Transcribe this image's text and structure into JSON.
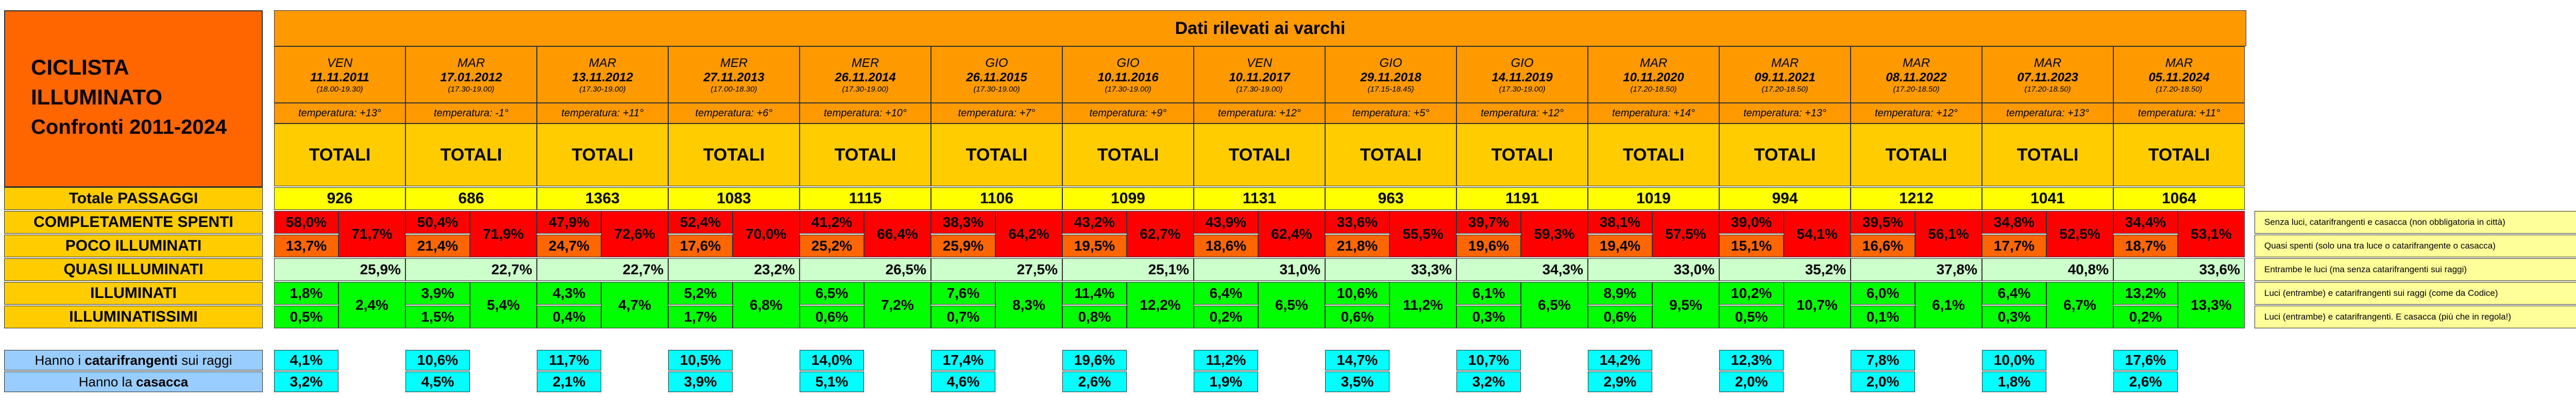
{
  "title": {
    "line1": "CICLISTA",
    "line2": "ILLUMINATO",
    "line3": "Confronti 2011-2024"
  },
  "header": "Dati rilevati ai varchi",
  "columns": [
    {
      "day": "VEN",
      "date": "11.11.2011",
      "hours": "(18.00-19.30)",
      "temp": "temperatura: +13°",
      "total": "TOTALI",
      "passaggi": "926",
      "spenti": "58,0%",
      "poco": "13,7%",
      "sum_sp_poco": "71,7%",
      "quasi": "25,9%",
      "ill": "1,8%",
      "illiss": "0,5%",
      "sum_ill": "2,4%",
      "catarifrangenti": "4,1%",
      "casacca": "3,2%"
    },
    {
      "day": "MAR",
      "date": "17.01.2012",
      "hours": "(17.30-19.00)",
      "temp": "temperatura: -1°",
      "total": "TOTALI",
      "passaggi": "686",
      "spenti": "50,4%",
      "poco": "21,4%",
      "sum_sp_poco": "71,9%",
      "quasi": "22,7%",
      "ill": "3,9%",
      "illiss": "1,5%",
      "sum_ill": "5,4%",
      "catarifrangenti": "10,6%",
      "casacca": "4,5%"
    },
    {
      "day": "MAR",
      "date": "13.11.2012",
      "hours": "(17.30-19.00)",
      "temp": "temperatura: +11°",
      "total": "TOTALI",
      "passaggi": "1363",
      "spenti": "47,9%",
      "poco": "24,7%",
      "sum_sp_poco": "72,6%",
      "quasi": "22,7%",
      "ill": "4,3%",
      "illiss": "0,4%",
      "sum_ill": "4,7%",
      "catarifrangenti": "11,7%",
      "casacca": "2,1%"
    },
    {
      "day": "MER",
      "date": "27.11.2013",
      "hours": "(17.00-18.30)",
      "temp": "temperatura: +6°",
      "total": "TOTALI",
      "passaggi": "1083",
      "spenti": "52,4%",
      "poco": "17,6%",
      "sum_sp_poco": "70,0%",
      "quasi": "23,2%",
      "ill": "5,2%",
      "illiss": "1,7%",
      "sum_ill": "6,8%",
      "catarifrangenti": "10,5%",
      "casacca": "3,9%"
    },
    {
      "day": "MER",
      "date": "26.11.2014",
      "hours": "(17.30-19.00)",
      "temp": "temperatura: +10°",
      "total": "TOTALI",
      "passaggi": "1115",
      "spenti": "41,2%",
      "poco": "25,2%",
      "sum_sp_poco": "66,4%",
      "quasi": "26,5%",
      "ill": "6,5%",
      "illiss": "0,6%",
      "sum_ill": "7,2%",
      "catarifrangenti": "14,0%",
      "casacca": "5,1%"
    },
    {
      "day": "GIO",
      "date": "26.11.2015",
      "hours": "(17.30-19.00)",
      "temp": "temperatura: +7°",
      "total": "TOTALI",
      "passaggi": "1106",
      "spenti": "38,3%",
      "poco": "25,9%",
      "sum_sp_poco": "64,2%",
      "quasi": "27,5%",
      "ill": "7,6%",
      "illiss": "0,7%",
      "sum_ill": "8,3%",
      "catarifrangenti": "17,4%",
      "casacca": "4,6%"
    },
    {
      "day": "GIO",
      "date": "10.11.2016",
      "hours": "(17.30-19.00)",
      "temp": "temperatura: +9°",
      "total": "TOTALI",
      "passaggi": "1099",
      "spenti": "43,2%",
      "poco": "19,5%",
      "sum_sp_poco": "62,7%",
      "quasi": "25,1%",
      "ill": "11,4%",
      "illiss": "0,8%",
      "sum_ill": "12,2%",
      "catarifrangenti": "19,6%",
      "casacca": "2,6%"
    },
    {
      "day": "VEN",
      "date": "10.11.2017",
      "hours": "(17.30-19.00)",
      "temp": "temperatura: +12°",
      "total": "TOTALI",
      "passaggi": "1131",
      "spenti": "43,9%",
      "poco": "18,6%",
      "sum_sp_poco": "62,4%",
      "quasi": "31,0%",
      "ill": "6,4%",
      "illiss": "0,2%",
      "sum_ill": "6,5%",
      "catarifrangenti": "11,2%",
      "casacca": "1,9%"
    },
    {
      "day": "GIO",
      "date": "29.11.2018",
      "hours": "(17.15-18.45)",
      "temp": "temperatura: +5°",
      "total": "TOTALI",
      "passaggi": "963",
      "spenti": "33,6%",
      "poco": "21,8%",
      "sum_sp_poco": "55,5%",
      "quasi": "33,3%",
      "ill": "10,6%",
      "illiss": "0,6%",
      "sum_ill": "11,2%",
      "catarifrangenti": "14,7%",
      "casacca": "3,5%"
    },
    {
      "day": "GIO",
      "date": "14.11.2019",
      "hours": "(17.30-19.00)",
      "temp": "temperatura: +12°",
      "total": "TOTALI",
      "passaggi": "1191",
      "spenti": "39,7%",
      "poco": "19,6%",
      "sum_sp_poco": "59,3%",
      "quasi": "34,3%",
      "ill": "6,1%",
      "illiss": "0,3%",
      "sum_ill": "6,5%",
      "catarifrangenti": "10,7%",
      "casacca": "3,2%"
    },
    {
      "day": "MAR",
      "date": "10.11.2020",
      "hours": "(17.20-18.50)",
      "temp": "temperatura: +14°",
      "total": "TOTALI",
      "passaggi": "1019",
      "spenti": "38,1%",
      "poco": "19,4%",
      "sum_sp_poco": "57,5%",
      "quasi": "33,0%",
      "ill": "8,9%",
      "illiss": "0,6%",
      "sum_ill": "9,5%",
      "catarifrangenti": "14,2%",
      "casacca": "2,9%"
    },
    {
      "day": "MAR",
      "date": "09.11.2021",
      "hours": "(17.20-18.50)",
      "temp": "temperatura: +13°",
      "total": "TOTALI",
      "passaggi": "994",
      "spenti": "39,0%",
      "poco": "15,1%",
      "sum_sp_poco": "54,1%",
      "quasi": "35,2%",
      "ill": "10,2%",
      "illiss": "0,5%",
      "sum_ill": "10,7%",
      "catarifrangenti": "12,3%",
      "casacca": "2,0%"
    },
    {
      "day": "MAR",
      "date": "08.11.2022",
      "hours": "(17.20-18.50)",
      "temp": "temperatura: +12°",
      "total": "TOTALI",
      "passaggi": "1212",
      "spenti": "39,5%",
      "poco": "16,6%",
      "sum_sp_poco": "56,1%",
      "quasi": "37,8%",
      "ill": "6,0%",
      "illiss": "0,1%",
      "sum_ill": "6,1%",
      "catarifrangenti": "7,8%",
      "casacca": "2,0%"
    },
    {
      "day": "MAR",
      "date": "07.11.2023",
      "hours": "(17.20-18.50)",
      "temp": "temperatura: +13°",
      "total": "TOTALI",
      "passaggi": "1041",
      "spenti": "34,8%",
      "poco": "17,7%",
      "sum_sp_poco": "52,5%",
      "quasi": "40,8%",
      "ill": "6,4%",
      "illiss": "0,3%",
      "sum_ill": "6,7%",
      "catarifrangenti": "10,0%",
      "casacca": "1,8%"
    },
    {
      "day": "MAR",
      "date": "05.11.2024",
      "hours": "(17.20-18.50)",
      "temp": "temperatura: +11°",
      "total": "TOTALI",
      "passaggi": "1064",
      "spenti": "34,4%",
      "poco": "18,7%",
      "sum_sp_poco": "53,1%",
      "quasi": "33,6%",
      "ill": "13,2%",
      "illiss": "0,2%",
      "sum_ill": "13,3%",
      "catarifrangenti": "17,6%",
      "casacca": "2,6%"
    }
  ],
  "row_labels": {
    "passaggi": "Totale PASSAGGI",
    "spenti": "COMPLETAMENTE SPENTI",
    "poco": "POCO ILLUMINATI",
    "quasi": "QUASI ILLUMINATI",
    "ill": "ILLUMINATI",
    "illiss": "ILLUMINATISSIMI"
  },
  "notes": {
    "spenti": "Senza luci, catarifrangenti e casacca (non obbligatoria in città)",
    "poco": "Quasi spenti (solo una tra luce o catarifrangente o casacca)",
    "quasi": "Entrambe le luci (ma senza catarifrangenti sui raggi)",
    "ill": "Luci (entrambe) e catarifrangenti sui raggi (come da Codice)",
    "illiss": "Luci (entrambe) e catarifrangenti. E casacca (più che in regola!)"
  },
  "bottom_labels": {
    "cat_pre": "Hanno i ",
    "cat_bold": "catarifrangenti",
    "cat_post": " sui raggi",
    "cas_pre": "Hanno la ",
    "cas_bold": "casacca"
  },
  "colors": {
    "red": "#FF0000",
    "orange": "#FF6600",
    "light_green": "#CCFFCC",
    "green": "#00FF00",
    "yellow": "#FFFF00",
    "cyan": "#00FFFF"
  }
}
